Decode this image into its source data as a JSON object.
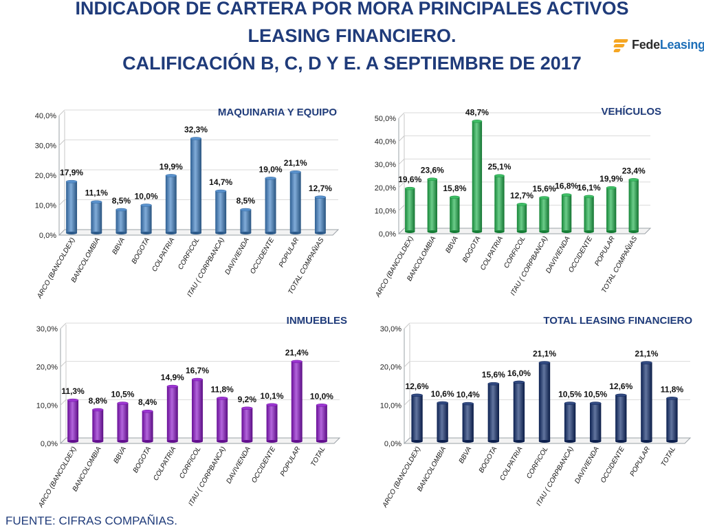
{
  "header": {
    "title_line1": "INDICADOR DE CARTERA POR MORA PRINCIPALES ACTIVOS",
    "title_line2": "LEASING FINANCIERO.",
    "title_line3": "CALIFICACIÓN B, C, D Y E. A SEPTIEMBRE DE 2017"
  },
  "logo": {
    "text_main": "Fede",
    "text_accent": "Leasing"
  },
  "footer": {
    "source": "FUENTE: CIFRAS COMPAÑIAS."
  },
  "colors": {
    "title": "#1f3b7a",
    "maquinaria": "#3d7fc4",
    "vehiculos": "#1db24b",
    "inmuebles": "#8a12c9",
    "total": "#0e2a6b"
  },
  "chart_data": [
    {
      "id": "maquinaria",
      "type": "bar",
      "title": "MAQUINARIA Y EQUIPO",
      "categories": [
        "ARCO (BANCOLDEX)",
        "BANCOLOMBIA",
        "BBVA",
        "BOGOTA",
        "COLPATRIA",
        "CORFICOL",
        "ITAU ( CORPBANCA)",
        "DAVIVIENDA",
        "OCCIDENTE",
        "POPULAR",
        "TOTAL COMPAÑIAS"
      ],
      "values": [
        17.9,
        11.1,
        8.5,
        10.0,
        19.9,
        32.3,
        14.7,
        8.5,
        19.0,
        21.1,
        12.7
      ],
      "data_labels": [
        "17,9%",
        "11,1%",
        "8,5%",
        "10,0%",
        "19,9%",
        "32,3%",
        "14,7%",
        "8,5%",
        "19,0%",
        "21,1%",
        "12,7%"
      ],
      "ylim": [
        0,
        40
      ],
      "yticks": [
        "0,0%",
        "10,0%",
        "20,0%",
        "30,0%",
        "40,0%"
      ],
      "color": "#3d7fc4"
    },
    {
      "id": "vehiculos",
      "type": "bar",
      "title": "VEHÍCULOS",
      "categories": [
        "ARCO (BANCOLDEX)",
        "BANCOLOMBIA",
        "BBVA",
        "BOGOTA",
        "COLPATRIA",
        "CORFICOL",
        "ITAU ( CORPBANCA)",
        "DAVIVIENDA",
        "OCCIDENTE",
        "POPULAR",
        "TOTAL COMPAÑIAS"
      ],
      "values": [
        19.6,
        23.6,
        15.8,
        48.7,
        25.1,
        12.7,
        15.6,
        16.8,
        16.1,
        19.9,
        23.4
      ],
      "data_labels": [
        "19,6%",
        "23,6%",
        "15,8%",
        "48,7%",
        "25,1%",
        "12,7%",
        "15,6%",
        "16,8%",
        "16,1%",
        "19,9%",
        "23,4%"
      ],
      "ylim": [
        0,
        50
      ],
      "yticks": [
        "0,0%",
        "10,0%",
        "20,0%",
        "30,0%",
        "40,0%",
        "50,0%"
      ],
      "color": "#1db24b"
    },
    {
      "id": "inmuebles",
      "type": "bar",
      "title": "INMUEBLES",
      "categories": [
        "ARCO (BANCOLDEX)",
        "BANCOLOMBIA",
        "BBVA",
        "BOGOTA",
        "COLPATRIA",
        "CORFICOL",
        "ITAU ( CORPBANCA)",
        "DAVIVIENDA",
        "OCCIDENTE",
        "POPULAR",
        "TOTAL"
      ],
      "values": [
        11.3,
        8.8,
        10.5,
        8.4,
        14.9,
        16.7,
        11.8,
        9.2,
        10.1,
        21.4,
        10.0
      ],
      "data_labels": [
        "11,3%",
        "8,8%",
        "10,5%",
        "8,4%",
        "14,9%",
        "16,7%",
        "11,8%",
        "9,2%",
        "10,1%",
        "21,4%",
        "10,0%"
      ],
      "ylim": [
        0,
        30
      ],
      "yticks": [
        "0,0%",
        "10,0%",
        "20,0%",
        "30,0%"
      ],
      "color": "#8a12c9"
    },
    {
      "id": "total",
      "type": "bar",
      "title": "TOTAL LEASING FINANCIERO",
      "categories": [
        "ARCO (BANCOLDEX)",
        "BANCOLOMBIA",
        "BBVA",
        "BOGOTA",
        "COLPATRIA",
        "CORFICOL",
        "ITAU ( CORPBANCA)",
        "DAVIVIENDA",
        "OCCIDENTE",
        "POPULAR",
        "TOTAL"
      ],
      "values": [
        12.6,
        10.6,
        10.4,
        15.6,
        16.0,
        21.1,
        10.5,
        10.5,
        12.6,
        21.1,
        11.8
      ],
      "data_labels": [
        "12,6%",
        "10,6%",
        "10,4%",
        "15,6%",
        "16,0%",
        "21,1%",
        "10,5%",
        "10,5%",
        "12,6%",
        "21,1%",
        "11,8%"
      ],
      "ylim": [
        0,
        30
      ],
      "yticks": [
        "0,0%",
        "10,0%",
        "20,0%",
        "30,0%"
      ],
      "color": "#0e2a6b"
    }
  ]
}
